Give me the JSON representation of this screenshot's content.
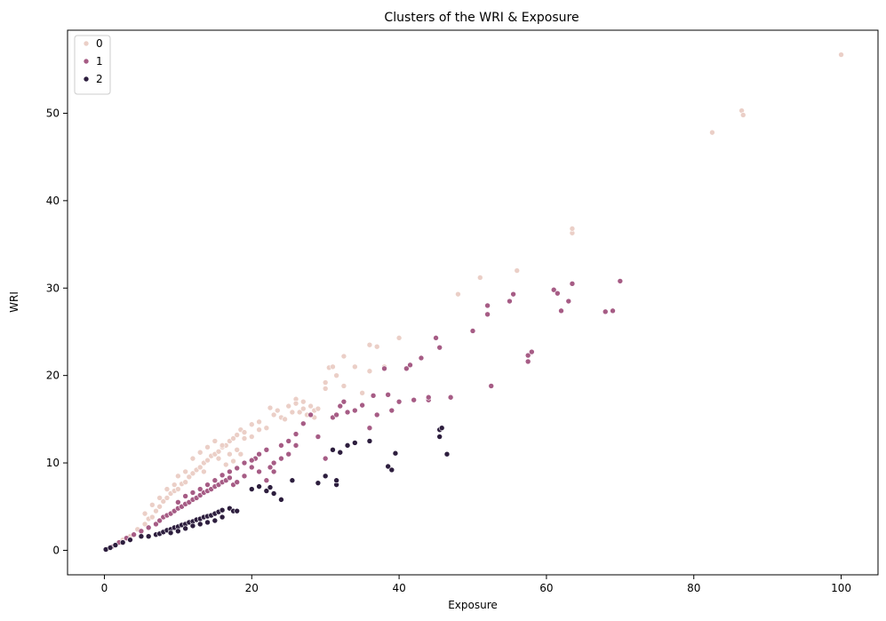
{
  "chart_data": {
    "type": "scatter",
    "title": "Clusters of the WRI & Exposure",
    "xlabel": "Exposure",
    "ylabel": "WRI",
    "xlim": [
      -5,
      105
    ],
    "ylim": [
      -2.8,
      59.5
    ],
    "xticks": [
      0,
      20,
      40,
      60,
      80,
      100
    ],
    "yticks": [
      0,
      10,
      20,
      30,
      40,
      50
    ],
    "grid": false,
    "legend_position": "top-left",
    "series": [
      {
        "name": "0",
        "color": "#ebcfc7",
        "points": [
          [
            0.5,
            0.2
          ],
          [
            1.5,
            0.6
          ],
          [
            2.5,
            1.2
          ],
          [
            3.5,
            1.6
          ],
          [
            4.5,
            2.4
          ],
          [
            5.5,
            3.0
          ],
          [
            6.0,
            3.6
          ],
          [
            6.5,
            3.8
          ],
          [
            7.0,
            4.5
          ],
          [
            7.5,
            5.0
          ],
          [
            8.0,
            5.6
          ],
          [
            8.5,
            6.0
          ],
          [
            9.0,
            6.5
          ],
          [
            9.5,
            6.8
          ],
          [
            10.0,
            7.0
          ],
          [
            10.5,
            7.6
          ],
          [
            11.0,
            7.8
          ],
          [
            11.5,
            8.4
          ],
          [
            12.0,
            8.8
          ],
          [
            12.5,
            9.2
          ],
          [
            13.0,
            9.5
          ],
          [
            13.5,
            10.0
          ],
          [
            14.0,
            10.3
          ],
          [
            14.5,
            10.8
          ],
          [
            15.0,
            11.0
          ],
          [
            15.5,
            11.3
          ],
          [
            16.0,
            11.8
          ],
          [
            16.5,
            12.0
          ],
          [
            17.0,
            12.5
          ],
          [
            17.5,
            12.8
          ],
          [
            18.0,
            13.2
          ],
          [
            18.5,
            13.8
          ],
          [
            19.0,
            13.5
          ],
          [
            20.0,
            14.4
          ],
          [
            21.0,
            14.7
          ],
          [
            22.0,
            14.0
          ],
          [
            23.0,
            15.5
          ],
          [
            24.0,
            15.2
          ],
          [
            25.0,
            16.5
          ],
          [
            26.0,
            17.3
          ],
          [
            26.5,
            15.8
          ],
          [
            27.0,
            16.2
          ],
          [
            27.5,
            15.5
          ],
          [
            28.0,
            16.5
          ],
          [
            28.5,
            16.0
          ],
          [
            30.0,
            18.5
          ],
          [
            30.0,
            19.2
          ],
          [
            30.5,
            20.9
          ],
          [
            31.0,
            21.0
          ],
          [
            31.5,
            20.0
          ],
          [
            32.5,
            22.2
          ],
          [
            32.5,
            18.8
          ],
          [
            34.0,
            21.0
          ],
          [
            35.0,
            18.0
          ],
          [
            36.0,
            23.5
          ],
          [
            36.0,
            20.5
          ],
          [
            37.0,
            23.3
          ],
          [
            38.0,
            21.0
          ],
          [
            40.0,
            24.3
          ],
          [
            48.0,
            29.3
          ],
          [
            51.0,
            31.2
          ],
          [
            56.0,
            32.0
          ],
          [
            63.5,
            36.3
          ],
          [
            63.5,
            36.8
          ],
          [
            82.5,
            47.8
          ],
          [
            86.5,
            50.3
          ],
          [
            86.7,
            49.8
          ],
          [
            100.0,
            56.7
          ],
          [
            12.0,
            10.5
          ],
          [
            13.0,
            11.2
          ],
          [
            14.0,
            11.8
          ],
          [
            15.0,
            12.5
          ],
          [
            16.0,
            12.0
          ],
          [
            17.0,
            11.0
          ],
          [
            18.0,
            11.5
          ],
          [
            19.0,
            12.8
          ],
          [
            20.0,
            13.0
          ],
          [
            21.0,
            13.8
          ],
          [
            22.5,
            16.3
          ],
          [
            23.5,
            16.0
          ],
          [
            24.5,
            15.0
          ],
          [
            25.5,
            15.8
          ],
          [
            26.0,
            16.8
          ],
          [
            27.0,
            17.0
          ],
          [
            28.5,
            15.2
          ],
          [
            29.0,
            16.2
          ],
          [
            11.0,
            9.0
          ],
          [
            10.0,
            8.5
          ],
          [
            9.5,
            7.5
          ],
          [
            8.5,
            7.0
          ],
          [
            7.5,
            6.0
          ],
          [
            6.5,
            5.2
          ],
          [
            5.5,
            4.2
          ],
          [
            13.5,
            9.0
          ],
          [
            15.5,
            10.5
          ],
          [
            16.5,
            9.8
          ],
          [
            17.5,
            10.2
          ],
          [
            18.5,
            11.0
          ]
        ]
      },
      {
        "name": "1",
        "color": "#a65c85",
        "points": [
          [
            1.0,
            0.4
          ],
          [
            2.0,
            0.9
          ],
          [
            3.0,
            1.4
          ],
          [
            4.0,
            1.8
          ],
          [
            5.0,
            2.2
          ],
          [
            6.0,
            2.6
          ],
          [
            7.0,
            3.0
          ],
          [
            7.5,
            3.4
          ],
          [
            8.0,
            3.8
          ],
          [
            8.5,
            4.0
          ],
          [
            9.0,
            4.2
          ],
          [
            9.5,
            4.5
          ],
          [
            10.0,
            4.8
          ],
          [
            10.5,
            5.0
          ],
          [
            11.0,
            5.3
          ],
          [
            11.5,
            5.5
          ],
          [
            12.0,
            5.8
          ],
          [
            12.5,
            6.0
          ],
          [
            13.0,
            6.3
          ],
          [
            13.5,
            6.6
          ],
          [
            14.0,
            6.8
          ],
          [
            14.5,
            7.0
          ],
          [
            15.0,
            7.3
          ],
          [
            15.5,
            7.5
          ],
          [
            16.0,
            7.8
          ],
          [
            16.5,
            8.0
          ],
          [
            17.0,
            8.3
          ],
          [
            17.5,
            7.5
          ],
          [
            18.0,
            7.8
          ],
          [
            19.0,
            8.5
          ],
          [
            20.0,
            9.5
          ],
          [
            20.5,
            10.5
          ],
          [
            21.0,
            11.0
          ],
          [
            22.0,
            11.5
          ],
          [
            22.5,
            9.5
          ],
          [
            23.0,
            10.0
          ],
          [
            24.0,
            12.0
          ],
          [
            25.0,
            12.5
          ],
          [
            26.0,
            13.3
          ],
          [
            27.0,
            14.5
          ],
          [
            28.0,
            15.5
          ],
          [
            29.0,
            13.0
          ],
          [
            30.0,
            10.5
          ],
          [
            31.0,
            15.2
          ],
          [
            31.5,
            15.5
          ],
          [
            32.0,
            16.5
          ],
          [
            32.5,
            17.0
          ],
          [
            33.0,
            15.8
          ],
          [
            34.0,
            16.0
          ],
          [
            35.0,
            16.6
          ],
          [
            36.0,
            14.0
          ],
          [
            36.5,
            17.7
          ],
          [
            37.0,
            15.5
          ],
          [
            38.0,
            20.8
          ],
          [
            38.5,
            17.8
          ],
          [
            39.0,
            16.0
          ],
          [
            40.0,
            17.0
          ],
          [
            41.0,
            20.8
          ],
          [
            41.5,
            21.2
          ],
          [
            42.0,
            17.2
          ],
          [
            43.0,
            22.0
          ],
          [
            44.0,
            17.2
          ],
          [
            45.0,
            24.3
          ],
          [
            45.5,
            23.2
          ],
          [
            47.0,
            17.5
          ],
          [
            50.0,
            25.1
          ],
          [
            52.0,
            27.0
          ],
          [
            52.0,
            28.0
          ],
          [
            52.5,
            18.8
          ],
          [
            55.0,
            28.5
          ],
          [
            55.5,
            29.3
          ],
          [
            57.5,
            21.6
          ],
          [
            57.5,
            22.3
          ],
          [
            58.0,
            22.7
          ],
          [
            61.0,
            29.8
          ],
          [
            61.5,
            29.4
          ],
          [
            62.0,
            27.4
          ],
          [
            63.0,
            28.5
          ],
          [
            63.5,
            30.5
          ],
          [
            68.0,
            27.3
          ],
          [
            69.0,
            27.4
          ],
          [
            70.0,
            30.8
          ],
          [
            10.0,
            5.5
          ],
          [
            11.0,
            6.2
          ],
          [
            12.0,
            6.6
          ],
          [
            13.0,
            7.0
          ],
          [
            14.0,
            7.5
          ],
          [
            15.0,
            8.0
          ],
          [
            16.0,
            8.6
          ],
          [
            17.0,
            9.0
          ],
          [
            18.0,
            9.4
          ],
          [
            19.0,
            10.0
          ],
          [
            20.0,
            10.3
          ],
          [
            21.0,
            9.0
          ],
          [
            22.0,
            8.0
          ],
          [
            23.0,
            9.0
          ],
          [
            24.0,
            10.5
          ],
          [
            25.0,
            11.0
          ],
          [
            26.0,
            12.0
          ],
          [
            44.0,
            17.5
          ]
        ]
      },
      {
        "name": "2",
        "color": "#2d1e3e",
        "points": [
          [
            0.2,
            0.1
          ],
          [
            0.8,
            0.3
          ],
          [
            1.5,
            0.6
          ],
          [
            2.5,
            0.9
          ],
          [
            3.5,
            1.2
          ],
          [
            5.0,
            1.6
          ],
          [
            6.0,
            1.6
          ],
          [
            7.0,
            1.8
          ],
          [
            7.5,
            1.9
          ],
          [
            8.0,
            2.1
          ],
          [
            8.5,
            2.3
          ],
          [
            9.0,
            2.4
          ],
          [
            9.5,
            2.6
          ],
          [
            10.0,
            2.7
          ],
          [
            10.5,
            2.9
          ],
          [
            11.0,
            3.0
          ],
          [
            11.5,
            3.2
          ],
          [
            12.0,
            3.3
          ],
          [
            12.5,
            3.5
          ],
          [
            13.0,
            3.6
          ],
          [
            13.5,
            3.8
          ],
          [
            14.0,
            3.9
          ],
          [
            14.5,
            4.0
          ],
          [
            15.0,
            4.2
          ],
          [
            15.5,
            4.4
          ],
          [
            16.0,
            4.6
          ],
          [
            17.0,
            4.8
          ],
          [
            17.5,
            4.5
          ],
          [
            18.0,
            4.5
          ],
          [
            20.0,
            7.0
          ],
          [
            21.0,
            7.3
          ],
          [
            22.0,
            6.8
          ],
          [
            22.5,
            7.2
          ],
          [
            23.0,
            6.5
          ],
          [
            24.0,
            5.8
          ],
          [
            25.5,
            8.0
          ],
          [
            29.0,
            7.7
          ],
          [
            30.0,
            8.5
          ],
          [
            31.0,
            11.5
          ],
          [
            31.5,
            7.5
          ],
          [
            31.5,
            8.0
          ],
          [
            32.0,
            11.2
          ],
          [
            33.0,
            12.0
          ],
          [
            34.0,
            12.3
          ],
          [
            36.0,
            12.5
          ],
          [
            38.5,
            9.6
          ],
          [
            39.0,
            9.2
          ],
          [
            39.5,
            11.1
          ],
          [
            45.5,
            13.8
          ],
          [
            45.5,
            13.0
          ],
          [
            45.8,
            14.0
          ],
          [
            46.5,
            11.0
          ],
          [
            9.0,
            2.0
          ],
          [
            10.0,
            2.2
          ],
          [
            11.0,
            2.5
          ],
          [
            12.0,
            2.8
          ],
          [
            13.0,
            3.0
          ],
          [
            14.0,
            3.2
          ],
          [
            15.0,
            3.4
          ],
          [
            16.0,
            3.8
          ]
        ]
      }
    ]
  }
}
